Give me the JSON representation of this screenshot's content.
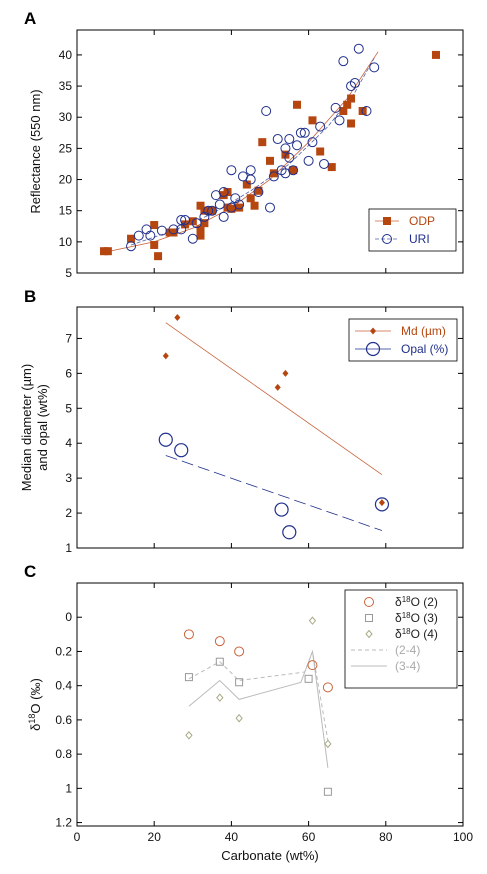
{
  "chart_data": [
    {
      "type": "scatter",
      "panel_label": "A",
      "xlabel": "",
      "ylabel": "Reflectance (550 nm)",
      "xlim": [
        0,
        100
      ],
      "ylim": [
        5,
        44
      ],
      "yticks": [
        5,
        10,
        15,
        20,
        25,
        30,
        35,
        40
      ],
      "legend": "right",
      "series": [
        {
          "name": "ODP",
          "marker": "filled-square",
          "color": "#b5460f",
          "points": [
            [
              7,
              8.5
            ],
            [
              8,
              8.5
            ],
            [
              14,
              10.5
            ],
            [
              20,
              12.7
            ],
            [
              20,
              9.5
            ],
            [
              21,
              7.7
            ],
            [
              24,
              11.5
            ],
            [
              25,
              11.5
            ],
            [
              28,
              12.8
            ],
            [
              30,
              13.3
            ],
            [
              32,
              11
            ],
            [
              32,
              12
            ],
            [
              32,
              15.8
            ],
            [
              33,
              13
            ],
            [
              33,
              15
            ],
            [
              35,
              15
            ],
            [
              38,
              17.5
            ],
            [
              39,
              15.5
            ],
            [
              39,
              18
            ],
            [
              40,
              15.3
            ],
            [
              42,
              15.5
            ],
            [
              44,
              19.2
            ],
            [
              45,
              17
            ],
            [
              46,
              15.8
            ],
            [
              47,
              18.2
            ],
            [
              48,
              26
            ],
            [
              50,
              23
            ],
            [
              51,
              21
            ],
            [
              54,
              24
            ],
            [
              56,
              21.5
            ],
            [
              57,
              32
            ],
            [
              61,
              29.5
            ],
            [
              63,
              24.5
            ],
            [
              66,
              22
            ],
            [
              69,
              31
            ],
            [
              70,
              32
            ],
            [
              71,
              33
            ],
            [
              71,
              29
            ],
            [
              74,
              31
            ],
            [
              93,
              40
            ]
          ]
        },
        {
          "name": "URI",
          "marker": "open-circle",
          "color": "#1f2f8c",
          "points": [
            [
              14,
              9.3
            ],
            [
              16,
              11
            ],
            [
              18,
              12
            ],
            [
              19,
              11
            ],
            [
              22,
              11.8
            ],
            [
              25,
              12
            ],
            [
              27,
              13.5
            ],
            [
              27,
              12
            ],
            [
              28,
              13.5
            ],
            [
              30,
              10.5
            ],
            [
              31,
              13
            ],
            [
              33,
              14
            ],
            [
              34,
              15
            ],
            [
              35,
              15
            ],
            [
              36,
              17.5
            ],
            [
              37,
              16
            ],
            [
              38,
              18
            ],
            [
              38,
              14
            ],
            [
              40,
              15.5
            ],
            [
              40,
              21.5
            ],
            [
              41,
              17
            ],
            [
              42,
              16
            ],
            [
              43,
              20.5
            ],
            [
              45,
              21.5
            ],
            [
              45,
              20
            ],
            [
              47,
              18
            ],
            [
              49,
              31
            ],
            [
              50,
              15.5
            ],
            [
              51,
              20.5
            ],
            [
              52,
              26.5
            ],
            [
              53,
              21.5
            ],
            [
              54,
              25
            ],
            [
              54,
              21
            ],
            [
              55,
              23.5
            ],
            [
              55,
              26.5
            ],
            [
              56,
              21.5
            ],
            [
              57,
              25.5
            ],
            [
              58,
              27.5
            ],
            [
              59,
              27.5
            ],
            [
              60,
              23
            ],
            [
              61,
              26
            ],
            [
              63,
              28.5
            ],
            [
              64,
              22.5
            ],
            [
              67,
              31.5
            ],
            [
              68,
              29.5
            ],
            [
              69,
              39
            ],
            [
              71,
              35
            ],
            [
              72,
              35.5
            ],
            [
              73,
              41
            ],
            [
              75,
              31
            ],
            [
              77,
              38
            ]
          ]
        }
      ]
    },
    {
      "type": "scatter",
      "panel_label": "B",
      "xlabel": "",
      "ylabel": "Median diameter (µm) and opal (wt%)",
      "xlim": [
        0,
        100
      ],
      "ylim": [
        1,
        7.9
      ],
      "yticks": [
        1,
        2,
        3,
        4,
        5,
        6,
        7
      ],
      "legend": "top-right",
      "series": [
        {
          "name": "Md (µm)",
          "marker": "filled-diamond",
          "color": "#b5460f",
          "points": [
            [
              23,
              6.5
            ],
            [
              26,
              7.6
            ],
            [
              52,
              5.6
            ],
            [
              54,
              6
            ],
            [
              79,
              2.3
            ]
          ]
        },
        {
          "name": "Opal (%)",
          "marker": "open-circle-large",
          "color": "#1f2f8c",
          "points": [
            [
              23,
              4.1
            ],
            [
              27,
              3.8
            ],
            [
              53,
              2.1
            ],
            [
              55,
              1.45
            ],
            [
              79,
              2.25
            ]
          ]
        }
      ]
    },
    {
      "type": "scatter",
      "panel_label": "C",
      "xlabel": "Carbonate (wt%)",
      "ylabel": "δ18O (‰)",
      "xlim": [
        0,
        100
      ],
      "xticks": [
        0,
        20,
        40,
        60,
        80,
        100
      ],
      "ylim": [
        1.22,
        -0.2
      ],
      "y_inverted": true,
      "yticks": [
        0,
        0.2,
        0.4,
        0.6,
        0.8,
        1,
        1.2
      ],
      "ytick_labels": [
        "0",
        "0.2",
        "0.4",
        "0.6",
        "0.8",
        "1",
        "1.2"
      ],
      "legend": "top-right",
      "series": [
        {
          "name_base": "δ",
          "name_sup": "18",
          "name_rest": "O (2)",
          "marker": "open-circle",
          "color": "#c8643c",
          "points": [
            [
              29,
              0.1
            ],
            [
              37,
              0.14
            ],
            [
              42,
              0.2
            ],
            [
              61,
              0.28
            ],
            [
              65,
              0.41
            ]
          ]
        },
        {
          "name_base": "δ",
          "name_sup": "18",
          "name_rest": "O (3)",
          "marker": "open-square",
          "color": "#999999",
          "points": [
            [
              29,
              0.35
            ],
            [
              37,
              0.26
            ],
            [
              42,
              0.38
            ],
            [
              60,
              0.36
            ],
            [
              65,
              1.02
            ]
          ]
        },
        {
          "name_base": "δ",
          "name_sup": "18",
          "name_rest": "O (4)",
          "marker": "open-diamond",
          "color": "#a8a884",
          "points": [
            [
              29,
              0.69
            ],
            [
              37,
              0.47
            ],
            [
              42,
              0.59
            ],
            [
              61,
              0.02
            ],
            [
              65,
              0.74
            ]
          ]
        }
      ],
      "lines": [
        {
          "name": "(2-4)",
          "style": "dashed",
          "color": "#bbbbbb",
          "points": [
            [
              29,
              0.36
            ],
            [
              37,
              0.26
            ],
            [
              42,
              0.37
            ],
            [
              59,
              0.32
            ],
            [
              61,
              0.2
            ],
            [
              65,
              0.72
            ]
          ]
        },
        {
          "name": "(3-4)",
          "style": "solid",
          "color": "#bbbbbb",
          "points": [
            [
              29,
              0.52
            ],
            [
              37,
              0.37
            ],
            [
              42,
              0.48
            ],
            [
              58,
              0.38
            ],
            [
              61,
              0.2
            ],
            [
              65,
              0.88
            ]
          ]
        }
      ]
    }
  ]
}
